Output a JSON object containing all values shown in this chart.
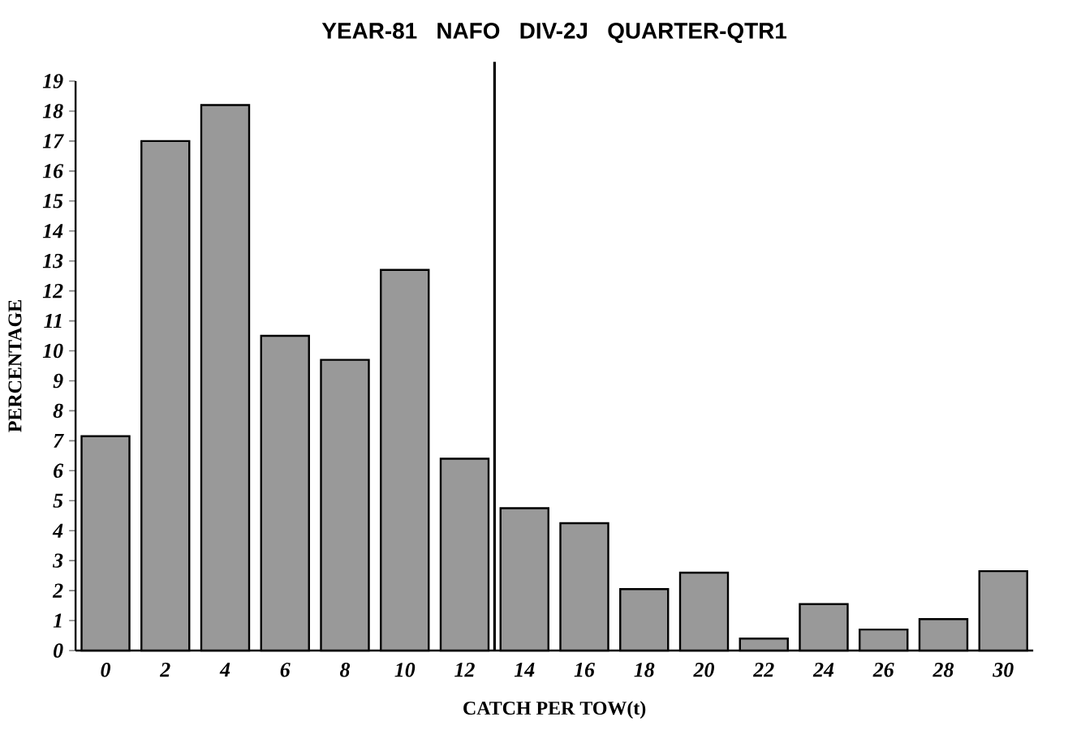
{
  "chart_data": {
    "type": "bar",
    "title": "YEAR-81    NAFO DIV-2J    QUARTER-QTR1",
    "xlabel": "CATCH PER TOW(t)",
    "ylabel": "PERCENTAGE",
    "x": [
      0,
      2,
      4,
      6,
      8,
      10,
      12,
      14,
      16,
      18,
      20,
      22,
      24,
      26,
      28,
      30
    ],
    "values": [
      7.15,
      17.0,
      18.2,
      10.5,
      9.7,
      12.7,
      6.4,
      4.75,
      4.25,
      2.05,
      2.6,
      0.4,
      1.55,
      0.7,
      1.05,
      2.65
    ],
    "color": "#000000",
    "xlim": [
      -1,
      31
    ],
    "xticks": [
      0,
      2,
      4,
      6,
      8,
      10,
      12,
      14,
      16,
      18,
      20,
      22,
      24,
      26,
      28,
      30
    ],
    "ylim": [
      0,
      19
    ],
    "yticks": [
      0,
      1,
      2,
      3,
      4,
      5,
      6,
      7,
      8,
      9,
      10,
      11,
      12,
      13,
      14,
      15,
      16,
      17,
      18,
      19
    ],
    "ref_lines": [
      {
        "axis": "x",
        "value": 13,
        "color": "#000000"
      }
    ]
  }
}
